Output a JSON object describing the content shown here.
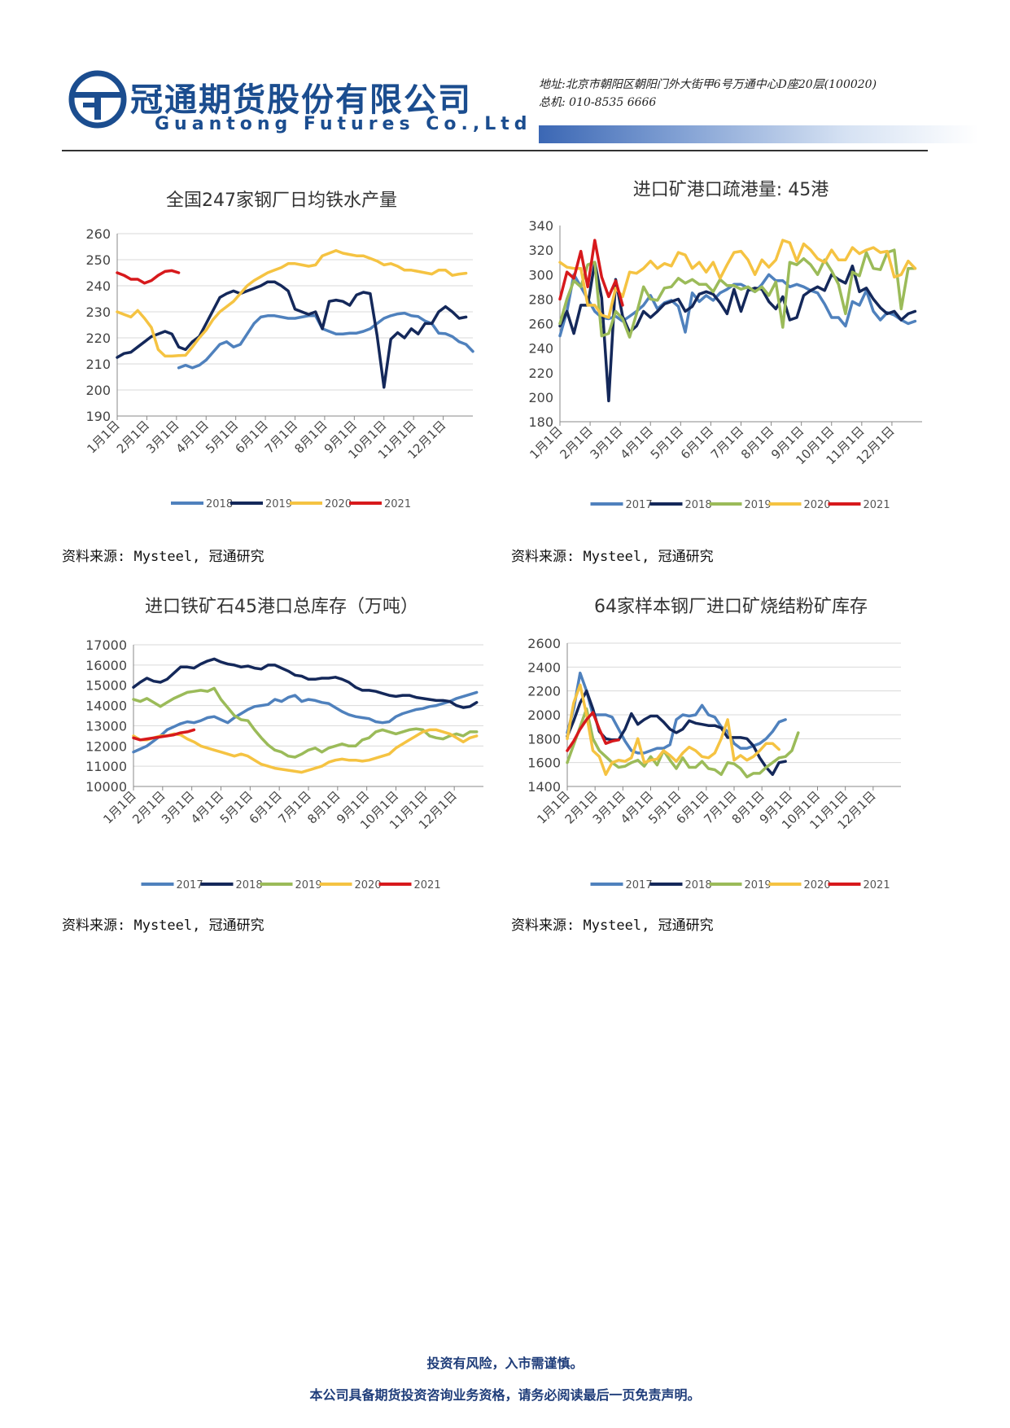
{
  "header": {
    "company_cn": "冠通期货股份有限公司",
    "company_en": "Guantong Futures Co.,Ltd",
    "address": "地址:北京市朝阳区朝阳门外大街甲6号万通中心D座20层(100020)",
    "phone": "总机: 010-8535 6666"
  },
  "sources": [
    "资料来源: Mysteel, 冠通研究",
    "资料来源: Mysteel, 冠通研究",
    "资料来源: Mysteel, 冠通研究",
    "资料来源: Mysteel, 冠通研究"
  ],
  "footer": {
    "line1": "投资有风险，入市需谨慎。",
    "line2": "本公司具备期货投资咨询业务资格，请务必阅读最后一页免责声明。"
  },
  "chart_data": [
    {
      "type": "line",
      "title": "全国247家钢厂日均铁水产量",
      "ylim": [
        190,
        260
      ],
      "yticks": [
        190,
        200,
        210,
        220,
        230,
        240,
        250,
        260
      ],
      "xticklabels": [
        "1月1日",
        "2月1日",
        "3月1日",
        "4月1日",
        "5月1日",
        "6月1日",
        "7月1日",
        "8月1日",
        "9月1日",
        "10月1日",
        "11月1日",
        "12月1日"
      ],
      "xmax": 52,
      "grid": true,
      "legend": "bottom",
      "colors": {
        "2018": "#4f81bd",
        "2019": "#14285a",
        "2020": "#f5c342",
        "2021": "#d7191c"
      },
      "series": [
        {
          "name": "2018",
          "x0": 9,
          "values": [
            208.5,
            209.5,
            208.5,
            209.5,
            211.5,
            214.5,
            217.5,
            218.5,
            216.5,
            217.5,
            221.5,
            225.5,
            228,
            228.5,
            228.5,
            228,
            227.5,
            227.5,
            228,
            228.5,
            228.5,
            223.5,
            222.5,
            221.5,
            221.5,
            221.8,
            221.8,
            222.5,
            223.5,
            225.5,
            227.5,
            228.5,
            229.2,
            229.5,
            228.5,
            228.2,
            226.5,
            225.5,
            221.8,
            221.6,
            220.5,
            218.5,
            217.5,
            214.8
          ]
        },
        {
          "name": "2019",
          "x0": 0,
          "values": [
            212.5,
            214,
            214.5,
            216.5,
            218.5,
            220.5,
            221.5,
            222.5,
            221.5,
            216.5,
            215.5,
            218.5,
            220.5,
            225.5,
            230.5,
            235.5,
            237,
            238,
            237,
            238,
            239,
            240,
            241.5,
            241.5,
            240,
            238,
            231,
            230,
            229,
            230,
            223.5,
            234,
            234.5,
            234,
            232.5,
            236.5,
            237.5,
            237,
            221,
            201,
            219.5,
            222,
            220,
            223.5,
            221.5,
            225.5,
            225.5,
            230,
            232,
            230,
            227.5,
            228
          ]
        },
        {
          "name": "2020",
          "x0": 0,
          "values": [
            230,
            229,
            228,
            230.5,
            227.5,
            224,
            215.5,
            213,
            213,
            213.2,
            213.3,
            216.5,
            220,
            223,
            227,
            230,
            232,
            234,
            237,
            240,
            242,
            243.5,
            245,
            246,
            247,
            248.5,
            248.5,
            248,
            247.5,
            248,
            251.5,
            252.5,
            253.5,
            252.5,
            252,
            251.5,
            251.5,
            250.5,
            249.5,
            248,
            248.5,
            247.5,
            246,
            246,
            245.5,
            245,
            244.5,
            246,
            246,
            244,
            244.5,
            244.8
          ]
        },
        {
          "name": "2021",
          "x0": 0,
          "values": [
            245,
            244,
            242.5,
            242.5,
            241,
            242,
            244,
            245.5,
            245.8,
            245
          ]
        }
      ]
    },
    {
      "type": "line",
      "title": "进口矿港口疏港量: 45港",
      "ylim": [
        180,
        340
      ],
      "yticks": [
        180,
        200,
        220,
        240,
        260,
        280,
        300,
        320,
        340
      ],
      "xticklabels": [
        "1月1日",
        "2月1日",
        "3月1日",
        "4月1日",
        "5月1日",
        "6月1日",
        "7月1日",
        "8月1日",
        "9月1日",
        "10月1日",
        "11月1日",
        "12月1日"
      ],
      "xmax": 52,
      "grid": false,
      "legend": "bottom",
      "colors": {
        "2017": "#4f81bd",
        "2018": "#14285a",
        "2019": "#9bbb59",
        "2020": "#f5c342",
        "2021": "#d7191c"
      },
      "series": [
        {
          "name": "2017",
          "x0": 0,
          "values": [
            250,
            270,
            300,
            290,
            280,
            270,
            265,
            264,
            266,
            262,
            266,
            270,
            275,
            283,
            272,
            277,
            279,
            274,
            253,
            285,
            278,
            283,
            279,
            285,
            288,
            292,
            292,
            289,
            286,
            292,
            300,
            295,
            295,
            290,
            292,
            290,
            287,
            285,
            276,
            265,
            265,
            258,
            278,
            275,
            287,
            270,
            263,
            269,
            267,
            263,
            260,
            262
          ]
        },
        {
          "name": "2018",
          "x0": 0,
          "values": [
            258,
            270,
            252,
            275,
            275,
            310,
            281,
            197,
            296,
            266,
            253,
            258,
            270,
            265,
            270,
            276,
            278,
            280,
            270,
            274,
            284,
            286,
            284,
            277,
            268,
            288,
            270,
            287,
            289,
            288,
            278,
            272,
            282,
            263,
            265,
            283,
            287,
            290,
            287,
            300,
            296,
            293,
            307,
            286,
            289,
            280,
            273,
            268,
            270,
            263,
            268,
            270
          ]
        },
        {
          "name": "2019",
          "x0": 0,
          "values": [
            260,
            280,
            295,
            290,
            308,
            310,
            250,
            252,
            270,
            264,
            249,
            268,
            290,
            280,
            279,
            289,
            290,
            297,
            293,
            296,
            292,
            292,
            286,
            296,
            291,
            291,
            288,
            290,
            286,
            290,
            283,
            294,
            257,
            310,
            308,
            313,
            308,
            300,
            312,
            303,
            292,
            268,
            302,
            299,
            318,
            305,
            304,
            318,
            320,
            272,
            305,
            305
          ]
        },
        {
          "name": "2020",
          "x0": 0,
          "values": [
            310,
            306,
            305,
            305,
            275,
            275,
            267,
            265,
            289,
            282,
            302,
            301,
            305,
            311,
            305,
            309,
            307,
            318,
            316,
            305,
            310,
            302,
            310,
            297,
            308,
            318,
            319,
            312,
            300,
            312,
            306,
            312,
            328,
            326,
            311,
            325,
            320,
            313,
            310,
            320,
            312,
            312,
            322,
            317,
            320,
            322,
            318,
            319,
            298,
            300,
            311,
            305
          ]
        },
        {
          "name": "2021",
          "x0": 0,
          "values": [
            280,
            302,
            297,
            319,
            290,
            328,
            298,
            282,
            295,
            275
          ]
        }
      ]
    },
    {
      "type": "line",
      "title": "进口铁矿石45港口总库存（万吨）",
      "ylim": [
        10000,
        17000
      ],
      "yticks": [
        10000,
        11000,
        12000,
        13000,
        14000,
        15000,
        16000,
        17000
      ],
      "xticklabels": [
        "1月1日",
        "2月1日",
        "3月1日",
        "4月1日",
        "5月1日",
        "6月1日",
        "7月1日",
        "8月1日",
        "9月1日",
        "10月1日",
        "11月1日",
        "12月1日"
      ],
      "xmax": 52,
      "grid": true,
      "legend": "bottom",
      "colors": {
        "2017": "#4f81bd",
        "2018": "#14285a",
        "2019": "#9bbb59",
        "2020": "#f5c342",
        "2021": "#d7191c"
      },
      "series": [
        {
          "name": "2017",
          "x0": 0,
          "values": [
            11700,
            11850,
            12000,
            12250,
            12500,
            12800,
            12950,
            13100,
            13200,
            13150,
            13250,
            13400,
            13450,
            13300,
            13150,
            13400,
            13600,
            13800,
            13950,
            14000,
            14050,
            14300,
            14200,
            14400,
            14500,
            14200,
            14300,
            14250,
            14150,
            14100,
            13900,
            13700,
            13550,
            13450,
            13400,
            13350,
            13200,
            13150,
            13200,
            13450,
            13600,
            13700,
            13800,
            13850,
            13950,
            14000,
            14100,
            14200,
            14350,
            14450,
            14550,
            14650
          ]
        },
        {
          "name": "2018",
          "x0": 0,
          "values": [
            14900,
            15150,
            15350,
            15200,
            15150,
            15300,
            15600,
            15900,
            15900,
            15850,
            16050,
            16200,
            16300,
            16150,
            16050,
            16000,
            15900,
            15950,
            15850,
            15800,
            16000,
            16000,
            15850,
            15700,
            15500,
            15450,
            15300,
            15300,
            15350,
            15350,
            15400,
            15300,
            15150,
            14900,
            14750,
            14750,
            14700,
            14600,
            14500,
            14450,
            14500,
            14500,
            14400,
            14350,
            14300,
            14250,
            14250,
            14200,
            14000,
            13900,
            13950,
            14150
          ]
        },
        {
          "name": "2019",
          "x0": 0,
          "values": [
            14300,
            14200,
            14350,
            14150,
            13950,
            14150,
            14350,
            14500,
            14650,
            14700,
            14750,
            14700,
            14850,
            14300,
            13900,
            13500,
            13300,
            13250,
            12800,
            12400,
            12050,
            11800,
            11700,
            11500,
            11450,
            11600,
            11800,
            11900,
            11700,
            11900,
            12000,
            12100,
            12000,
            12000,
            12300,
            12400,
            12700,
            12800,
            12700,
            12600,
            12700,
            12800,
            12850,
            12800,
            12500,
            12400,
            12350,
            12500,
            12600,
            12500,
            12700,
            12700
          ]
        },
        {
          "name": "2020",
          "x0": 0,
          "values": [
            12500,
            12300,
            12300,
            12400,
            12500,
            12500,
            12600,
            12550,
            12350,
            12200,
            12000,
            11900,
            11800,
            11700,
            11600,
            11500,
            11600,
            11500,
            11300,
            11100,
            11000,
            10900,
            10850,
            10800,
            10750,
            10700,
            10800,
            10900,
            11000,
            11200,
            11300,
            11350,
            11300,
            11300,
            11250,
            11300,
            11400,
            11500,
            11600,
            11900,
            12100,
            12300,
            12500,
            12700,
            12800,
            12800,
            12700,
            12600,
            12400,
            12200,
            12400,
            12500
          ]
        },
        {
          "name": "2021",
          "x0": 0,
          "values": [
            12400,
            12300,
            12350,
            12400,
            12450,
            12500,
            12550,
            12650,
            12700,
            12800
          ]
        }
      ]
    },
    {
      "type": "line",
      "title": "64家样本钢厂进口矿烧结粉矿库存",
      "ylim": [
        1400,
        2600
      ],
      "yticks": [
        1400,
        1600,
        1800,
        2000,
        2200,
        2400,
        2600
      ],
      "xticklabels": [
        "1月1日",
        "2月1日",
        "3月1日",
        "4月1日",
        "5月1日",
        "6月1日",
        "7月1日",
        "8月1日",
        "9月1日",
        "10月1日",
        "11月1日",
        "12月1日"
      ],
      "xmax": 52,
      "grid": true,
      "legend": "bottom",
      "colors": {
        "2017": "#4f81bd",
        "2018": "#14285a",
        "2019": "#9bbb59",
        "2020": "#f5c342",
        "2021": "#d7191c"
      },
      "series": [
        {
          "name": "2017",
          "x0": 0,
          "values": [
            1850,
            2050,
            2350,
            2200,
            2000,
            2000,
            2000,
            1980,
            1880,
            1780,
            1700,
            1680,
            1680,
            1700,
            1720,
            1720,
            1750,
            1960,
            2000,
            1990,
            2000,
            2080,
            2000,
            1980,
            1900,
            1860,
            1760,
            1720,
            1720,
            1740,
            1760,
            1800,
            1860,
            1940,
            1960
          ]
        },
        {
          "name": "2018",
          "x0": 0,
          "values": [
            1820,
            1950,
            2100,
            2200,
            2050,
            1860,
            1800,
            1790,
            1790,
            1880,
            2010,
            1920,
            1960,
            1990,
            1990,
            1940,
            1880,
            1850,
            1880,
            1950,
            1930,
            1920,
            1910,
            1910,
            1890,
            1810,
            1810,
            1810,
            1800,
            1740,
            1640,
            1560,
            1500,
            1600,
            1610
          ]
        },
        {
          "name": "2019",
          "x0": 0,
          "values": [
            1600,
            1750,
            1900,
            2050,
            1800,
            1700,
            1650,
            1600,
            1560,
            1570,
            1600,
            1620,
            1570,
            1650,
            1580,
            1700,
            1620,
            1550,
            1640,
            1560,
            1560,
            1610,
            1550,
            1540,
            1500,
            1600,
            1590,
            1550,
            1480,
            1510,
            1510,
            1560,
            1600,
            1640,
            1650,
            1700,
            1850
          ]
        },
        {
          "name": "2020",
          "x0": 0,
          "values": [
            1800,
            2100,
            2250,
            2000,
            1700,
            1650,
            1500,
            1600,
            1620,
            1610,
            1640,
            1800,
            1600,
            1620,
            1630,
            1700,
            1660,
            1610,
            1680,
            1730,
            1700,
            1650,
            1640,
            1680,
            1800,
            1960,
            1620,
            1660,
            1620,
            1650,
            1700,
            1760,
            1760,
            1710
          ]
        },
        {
          "name": "2021",
          "x0": 0,
          "values": [
            1700,
            1780,
            1880,
            1960,
            2020,
            1880,
            1760,
            1780,
            1790
          ]
        }
      ]
    }
  ]
}
